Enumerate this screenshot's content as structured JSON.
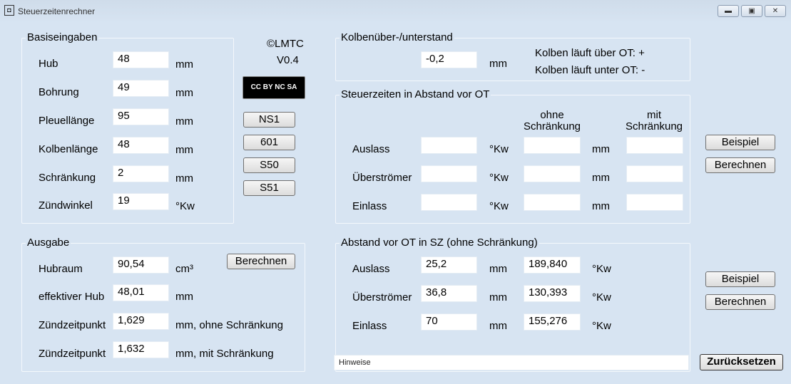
{
  "window": {
    "title": "Steuerzeitenrechner",
    "minimize": "▬",
    "maximize": "▣",
    "close": "✕"
  },
  "about": {
    "copyright": "©LMTC",
    "version": "V0.4",
    "license_badge": "CC BY NC SA"
  },
  "presets": [
    "NS1",
    "601",
    "S50",
    "S51"
  ],
  "basis": {
    "title": "Basiseingaben",
    "rows": [
      {
        "label": "Hub",
        "value": "48",
        "unit": "mm"
      },
      {
        "label": "Bohrung",
        "value": "49",
        "unit": "mm"
      },
      {
        "label": "Pleuellänge",
        "value": "95",
        "unit": "mm"
      },
      {
        "label": "Kolbenlänge",
        "value": "48",
        "unit": "mm"
      },
      {
        "label": "Schränkung",
        "value": "2",
        "unit": "mm"
      },
      {
        "label": "Zündwinkel",
        "value": "19",
        "unit": "°Kw"
      }
    ]
  },
  "ausgabe": {
    "title": "Ausgabe",
    "button": "Berechnen",
    "rows": [
      {
        "label": "Hubraum",
        "value": "90,54",
        "unit": "cm³"
      },
      {
        "label": "effektiver Hub",
        "value": "48,01",
        "unit": "mm"
      },
      {
        "label": "Zündzeitpunkt",
        "value": "1,629",
        "unit": "mm, ohne Schränkung"
      },
      {
        "label": "Zündzeitpunkt",
        "value": "1,632",
        "unit": "mm, mit Schränkung"
      }
    ]
  },
  "kolben": {
    "title": "Kolbenüber-/unterstand",
    "value": "-0,2",
    "unit": "mm",
    "note1": "Kolben läuft über OT: +",
    "note2": "Kolben läuft unter OT: -"
  },
  "steuer": {
    "title": "Steuerzeiten in Abstand vor OT",
    "col_ohne": "ohne\nSchränkung",
    "col_mit": "mit\nSchränkung",
    "unit1": "°Kw",
    "unit2": "mm",
    "rows": [
      {
        "label": "Auslass",
        "kw": "",
        "ohne": "",
        "mit": ""
      },
      {
        "label": "Überströmer",
        "kw": "",
        "ohne": "",
        "mit": ""
      },
      {
        "label": "Einlass",
        "kw": "",
        "ohne": "",
        "mit": ""
      }
    ],
    "example": "Beispiel",
    "calc": "Berechnen"
  },
  "abstand": {
    "title": "Abstand vor OT in SZ (ohne Schränkung)",
    "unit1": "mm",
    "unit2": "°Kw",
    "rows": [
      {
        "label": "Auslass",
        "mm": "25,2",
        "kw": "189,840"
      },
      {
        "label": "Überströmer",
        "mm": "36,8",
        "kw": "130,393"
      },
      {
        "label": "Einlass",
        "mm": "70",
        "kw": "155,276"
      }
    ],
    "example": "Beispiel",
    "calc": "Berechnen"
  },
  "footer": {
    "hint_placeholder": "Hinweise",
    "reset": "Zurücksetzen"
  }
}
